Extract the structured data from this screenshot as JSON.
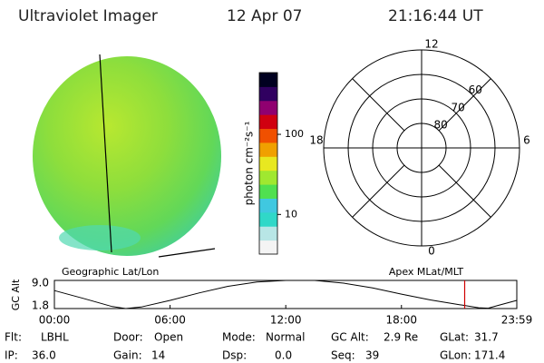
{
  "header": {
    "title": "Ultraviolet Imager",
    "date": "12 Apr 07",
    "time": "21:16:44 UT"
  },
  "colorbar": {
    "label": "photon cm⁻²s⁻¹",
    "scale": "log",
    "lim": [
      3.2,
      590
    ],
    "ticks": [
      10,
      100
    ],
    "colors": [
      "#f4f4f4",
      "#b8e6e6",
      "#30d8c8",
      "#40c8e0",
      "#50e050",
      "#a0e830",
      "#e8e820",
      "#f0a000",
      "#f05000",
      "#d00010",
      "#900070",
      "#300060",
      "#000020"
    ]
  },
  "polar": {
    "latlim": [
      50,
      90
    ],
    "rings": [
      60,
      70,
      80
    ],
    "mlt_ticks": [
      12,
      6,
      0,
      18
    ]
  },
  "map_labels": {
    "left": "Geographic Lat/Lon",
    "right": "Apex MLat/MLT"
  },
  "alt_plot": {
    "ylabel": "GC Alt",
    "ylim": [
      1.8,
      9.0
    ],
    "yticks": [
      {
        "value": 9.0,
        "label": "9.0"
      },
      {
        "value": 1.8,
        "label": "1.8"
      }
    ],
    "xlim": [
      0,
      23.983
    ],
    "xticks": [
      {
        "value": 0,
        "label": "00:00"
      },
      {
        "value": 6,
        "label": "06:00"
      },
      {
        "value": 12,
        "label": "12:00"
      },
      {
        "value": 18,
        "label": "18:00"
      },
      {
        "value": 23.983,
        "label": "23:59"
      }
    ],
    "x": [
      0,
      1.5,
      3,
      3.7,
      4.5,
      6,
      7.5,
      9,
      10.5,
      12,
      13.5,
      15,
      16.5,
      18,
      19.5,
      21,
      22,
      22.5,
      23,
      23.983
    ],
    "values": [
      6.4,
      4.4,
      2.3,
      1.8,
      2.2,
      3.9,
      5.8,
      7.5,
      8.6,
      9.0,
      9.0,
      8.3,
      7.1,
      5.5,
      4.0,
      2.8,
      2.0,
      1.9,
      2.6,
      3.9
    ],
    "current_time": 21.279,
    "marker_color": "#d00000"
  },
  "status": [
    [
      {
        "label": "Flt:",
        "value": "LBHL"
      },
      {
        "label": "Door:",
        "value": "Open"
      },
      {
        "label": "Mode:",
        "value": "Normal"
      },
      {
        "label": "GC Alt:",
        "value": "2.9 Re"
      },
      {
        "label": "GLat:",
        "value": "31.7"
      }
    ],
    [
      {
        "label": "IP:",
        "value": "36.0"
      },
      {
        "label": "Gain:",
        "value": "14"
      },
      {
        "label": "Dsp:",
        "value": "0.0"
      },
      {
        "label": "Seq:",
        "value": "39"
      },
      {
        "label": "GLon:",
        "value": "171.4"
      }
    ]
  ]
}
